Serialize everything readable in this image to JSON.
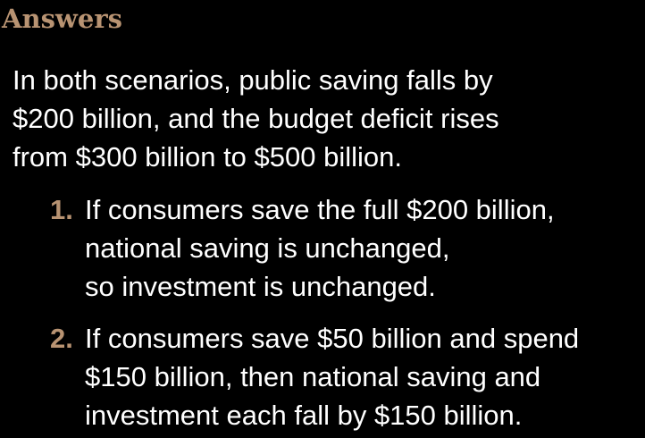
{
  "slide": {
    "title": "Answers",
    "accent_color": "#b89372",
    "text_color": "#ffffff",
    "background_color": "#000000",
    "intro_lines": [
      "In both scenarios, public saving falls by",
      "$200 billion, and the budget deficit rises",
      "from $300 billion to $500 billion."
    ],
    "items": [
      {
        "number": "1.",
        "lines": [
          "If consumers save the full $200 billion,",
          "national saving is unchanged,",
          "so investment is unchanged."
        ]
      },
      {
        "number": "2.",
        "lines": [
          "If consumers save $50 billion and spend",
          "$150 billion, then national saving and",
          "investment each fall by $150 billion."
        ]
      }
    ]
  }
}
